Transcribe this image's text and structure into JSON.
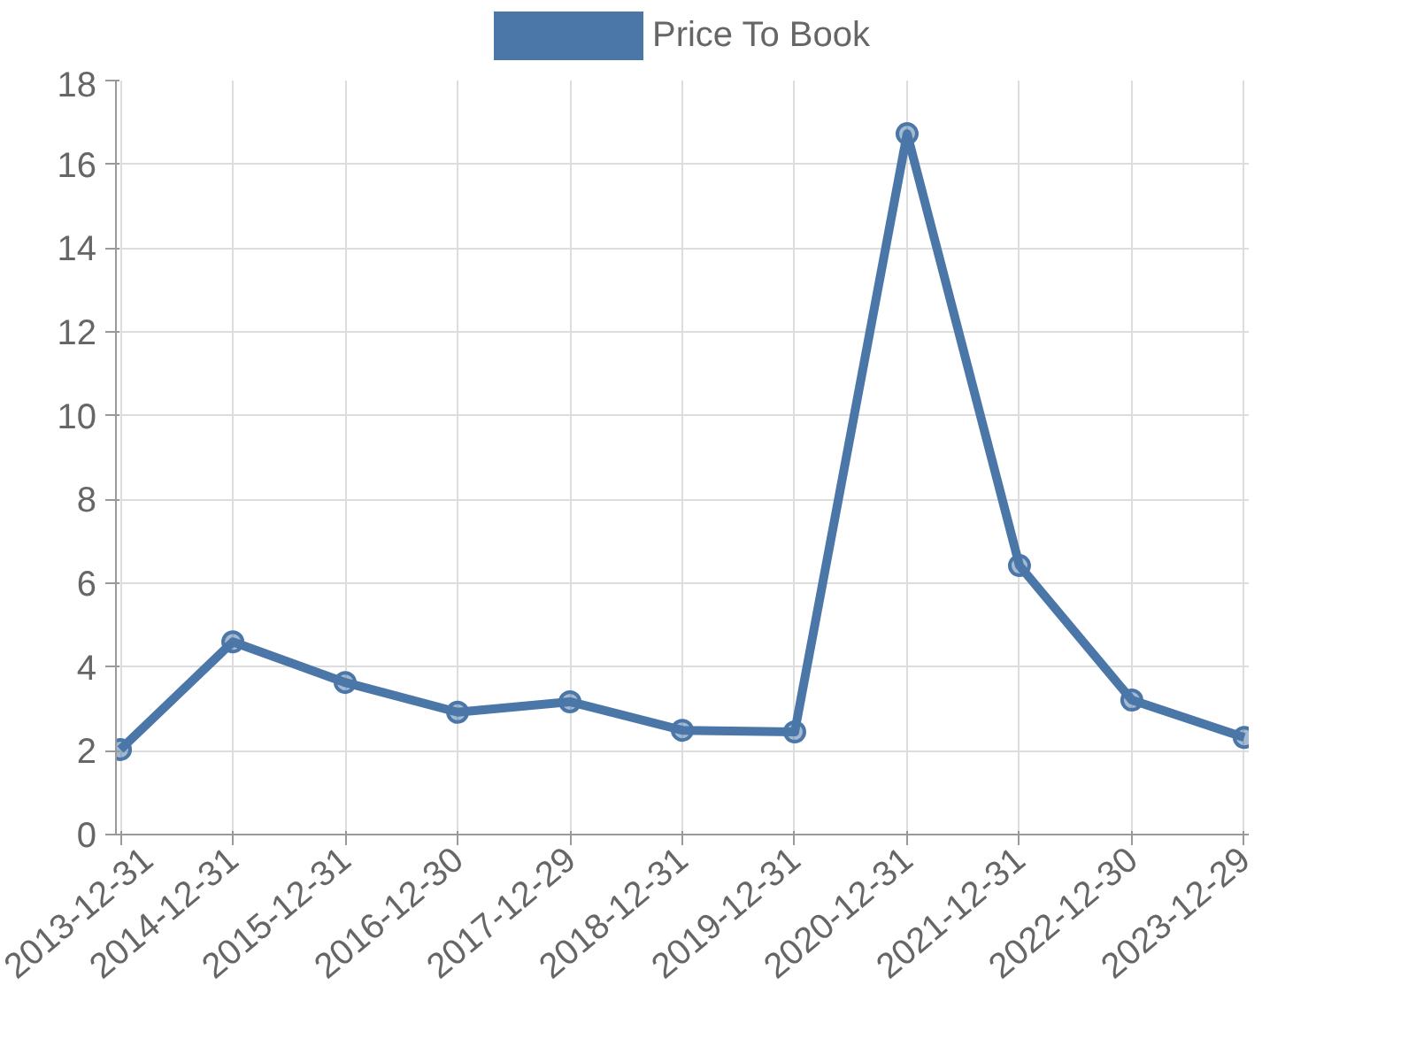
{
  "chart_data": {
    "type": "line",
    "categories": [
      "2013-12-31",
      "2014-12-31",
      "2015-12-31",
      "2016-12-30",
      "2017-12-29",
      "2018-12-31",
      "2019-12-31",
      "2020-12-31",
      "2021-12-31",
      "2022-12-30",
      "2023-12-29"
    ],
    "series": [
      {
        "name": "Price To Book",
        "color": "#4a76a8",
        "values": [
          2.03,
          4.6,
          3.63,
          2.92,
          3.17,
          2.49,
          2.45,
          16.73,
          6.42,
          3.21,
          2.32
        ]
      }
    ],
    "ylim": [
      0,
      18
    ],
    "yticks": [
      0,
      2,
      4,
      6,
      8,
      10,
      12,
      14,
      16,
      18
    ],
    "grid": true,
    "legend": "top",
    "marker": "circle",
    "line_style": "solid"
  }
}
